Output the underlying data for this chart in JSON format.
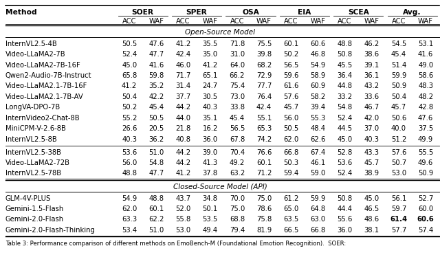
{
  "header_groups": [
    "SOER",
    "SPER",
    "OSA",
    "EIA",
    "SCEA",
    "Avg."
  ],
  "col_header": "Method",
  "open_source_section": "Open-Source Model",
  "closed_source_section": "Closed-Source Model (API)",
  "open_source_rows1": [
    [
      "InternVL2.5-4B",
      "50.5",
      "47.6",
      "41.2",
      "35.5",
      "71.8",
      "75.5",
      "60.1",
      "60.6",
      "48.8",
      "46.2",
      "54.5",
      "53.1"
    ],
    [
      "Video-LLaMA2-7B",
      "52.4",
      "47.7",
      "42.4",
      "35.0",
      "31.0",
      "39.8",
      "50.2",
      "46.8",
      "50.8",
      "38.6",
      "45.4",
      "41.6"
    ],
    [
      "Video-LLaMA2-7B-16F",
      "45.0",
      "41.6",
      "46.0",
      "41.2",
      "64.0",
      "68.2",
      "56.5",
      "54.9",
      "45.5",
      "39.1",
      "51.4",
      "49.0"
    ],
    [
      "Qwen2-Audio-7B-Instruct",
      "65.8",
      "59.8",
      "71.7",
      "65.1",
      "66.2",
      "72.9",
      "59.6",
      "58.9",
      "36.4",
      "36.1",
      "59.9",
      "58.6"
    ],
    [
      "Video-LLaMA2.1-7B-16F",
      "41.2",
      "35.2",
      "31.4",
      "24.7",
      "75.4",
      "77.7",
      "61.6",
      "60.9",
      "44.8",
      "43.2",
      "50.9",
      "48.3"
    ],
    [
      "Video-LLaMA2.1-7B-AV",
      "50.4",
      "42.2",
      "37.7",
      "30.5",
      "73.0",
      "76.4",
      "57.6",
      "58.2",
      "33.2",
      "33.6",
      "50.4",
      "48.2"
    ],
    [
      "LongVA-DPO-7B",
      "50.2",
      "45.4",
      "44.2",
      "40.3",
      "33.8",
      "42.4",
      "45.7",
      "39.4",
      "54.8",
      "46.7",
      "45.7",
      "42.8"
    ],
    [
      "InternVideo2-Chat-8B",
      "55.2",
      "50.5",
      "44.0",
      "35.1",
      "45.4",
      "55.1",
      "56.0",
      "55.3",
      "52.4",
      "42.0",
      "50.6",
      "47.6"
    ],
    [
      "MiniCPM-V-2.6-8B",
      "26.6",
      "20.5",
      "21.8",
      "16.2",
      "56.5",
      "65.3",
      "50.5",
      "48.4",
      "44.5",
      "37.0",
      "40.0",
      "37.5"
    ],
    [
      "InternVL2.5-8B",
      "40.3",
      "36.2",
      "40.8",
      "36.0",
      "67.8",
      "74.2",
      "62.0",
      "62.6",
      "45.0",
      "40.3",
      "51.2",
      "49.9"
    ]
  ],
  "open_source_rows2": [
    [
      "InternVL2.5-38B",
      "53.6",
      "51.0",
      "44.2",
      "39.0",
      "70.4",
      "76.6",
      "66.8",
      "67.4",
      "52.8",
      "43.3",
      "57.6",
      "55.5"
    ],
    [
      "Video-LLaMA2-72B",
      "56.0",
      "54.8",
      "44.2",
      "41.3",
      "49.2",
      "60.1",
      "50.3",
      "46.1",
      "53.6",
      "45.7",
      "50.7",
      "49.6"
    ],
    [
      "InternVL2.5-78B",
      "48.8",
      "47.7",
      "41.2",
      "37.8",
      "63.2",
      "71.2",
      "59.4",
      "59.0",
      "52.4",
      "38.9",
      "53.0",
      "50.9"
    ]
  ],
  "closed_source_rows": [
    [
      "GLM-4V-PLUS",
      "54.9",
      "48.8",
      "43.7",
      "34.8",
      "70.0",
      "75.0",
      "61.2",
      "59.9",
      "50.8",
      "45.0",
      "56.1",
      "52.7"
    ],
    [
      "Gemini-1.5-Flash",
      "62.0",
      "60.1",
      "52.0",
      "50.1",
      "75.0",
      "78.6",
      "65.0",
      "64.8",
      "44.4",
      "46.5",
      "59.7",
      "60.0"
    ],
    [
      "Gemini-2.0-Flash",
      "63.3",
      "62.2",
      "55.8",
      "53.5",
      "68.8",
      "75.8",
      "63.5",
      "63.0",
      "55.6",
      "48.6",
      "61.4",
      "60.6"
    ],
    [
      "Gemini-2.0-Flash-Thinking",
      "53.4",
      "51.0",
      "53.0",
      "49.4",
      "79.4",
      "81.9",
      "66.5",
      "66.8",
      "36.0",
      "38.1",
      "57.7",
      "57.4"
    ]
  ],
  "bold_row": 2,
  "bold_cols": [
    10,
    11
  ],
  "font_size": 7.2,
  "caption": "Table 3: Performance comparison of different methods on EmoBench-M (Foundational Emotion Recognition).  SOER:"
}
